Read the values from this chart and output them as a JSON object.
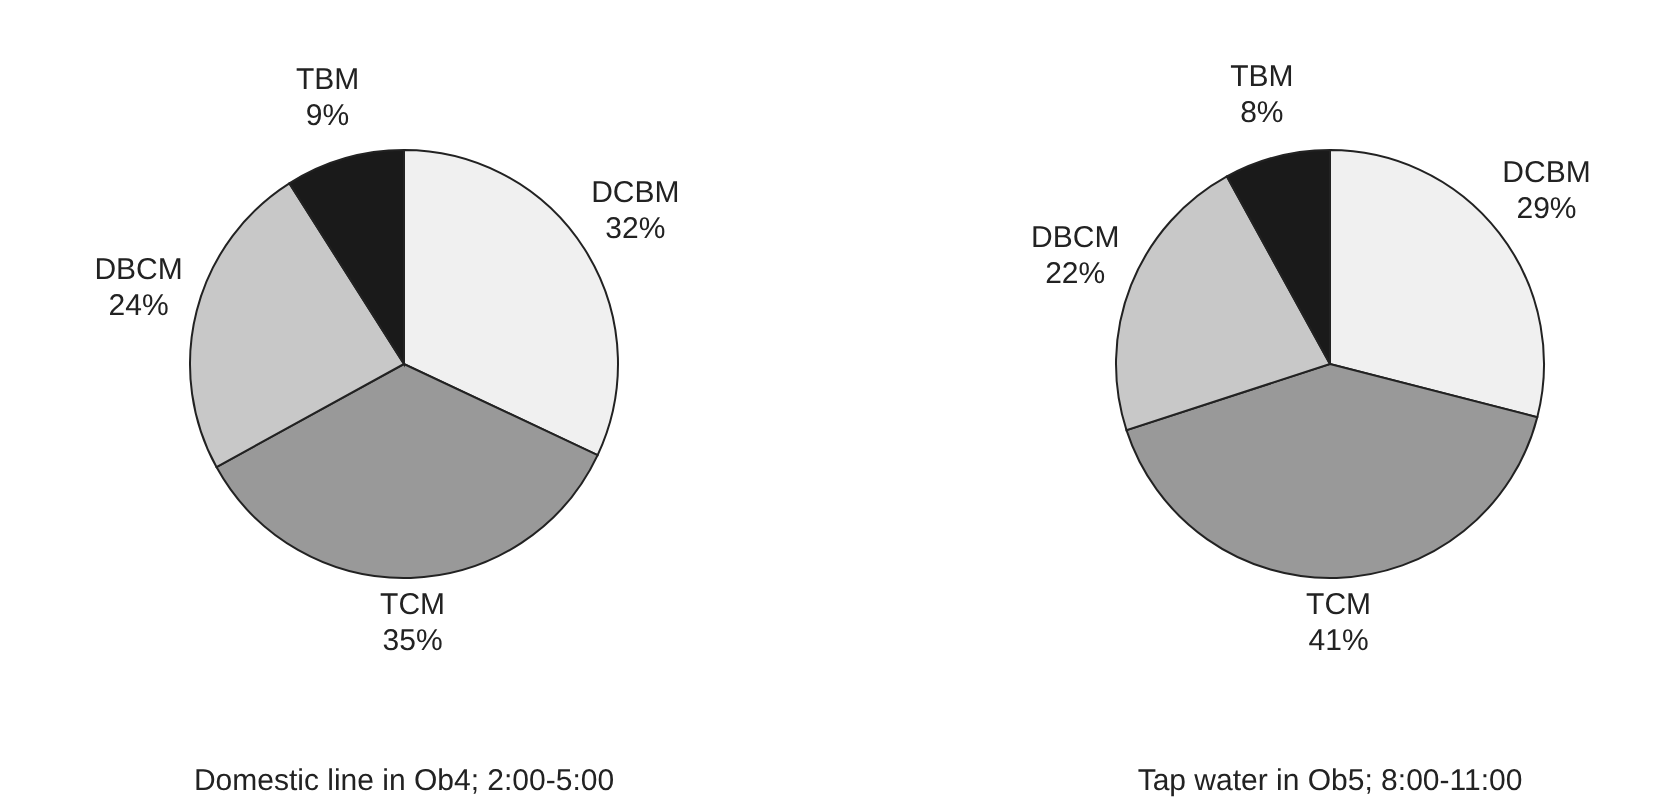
{
  "chart_data": [
    {
      "type": "pie",
      "title": "Domestic line in Ob4; 2:00-5:00",
      "categories": [
        "DCBM",
        "TCM",
        "DBCM",
        "TBM"
      ],
      "values": [
        32,
        35,
        24,
        9
      ],
      "value_labels": [
        "32%",
        "35%",
        "24%",
        "9%"
      ],
      "colors": [
        "#f0f0f0",
        "#999999",
        "#c8c8c8",
        "#1a1a1a"
      ]
    },
    {
      "type": "pie",
      "title": "Tap water in Ob5; 8:00-11:00",
      "categories": [
        "DCBM",
        "TCM",
        "DBCM",
        "TBM"
      ],
      "values": [
        29,
        41,
        22,
        8
      ],
      "value_labels": [
        "29%",
        "41%",
        "22%",
        "8%"
      ],
      "colors": [
        "#f0f0f0",
        "#999999",
        "#c8c8c8",
        "#1a1a1a"
      ]
    }
  ]
}
